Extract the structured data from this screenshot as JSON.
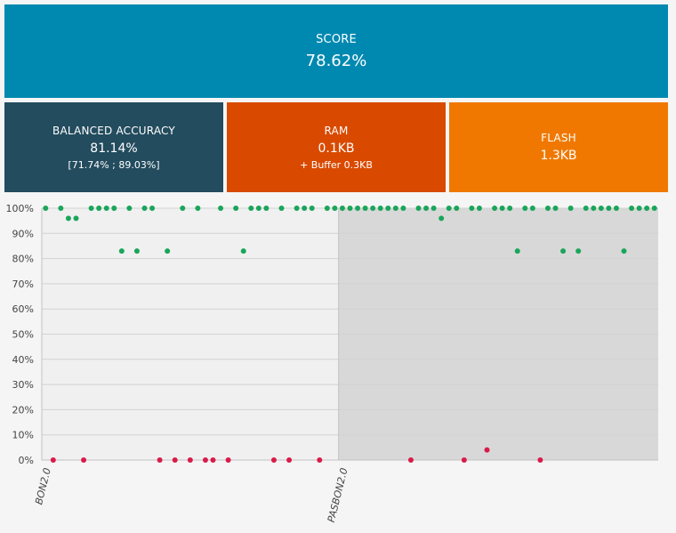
{
  "tiles": {
    "score": {
      "label": "SCORE",
      "value": "78.62%",
      "color": "#0089b0"
    },
    "balanced_accuracy": {
      "label": "BALANCED ACCURACY",
      "value": "81.14%",
      "interval": "[71.74% ; 89.03%]",
      "color": "#234c5e"
    },
    "ram": {
      "label": "RAM",
      "value": "0.1KB",
      "sub": "+ Buffer 0.3KB",
      "color": "#d94a00"
    },
    "flash": {
      "label": "FLASH",
      "value": "1.3KB",
      "color": "#f07800"
    }
  },
  "chart_data": {
    "type": "scatter",
    "title": "",
    "xlabel": "",
    "ylabel": "",
    "ylim": [
      0,
      100
    ],
    "grid": true,
    "y_ticks": [
      "0%",
      "10%",
      "20%",
      "30%",
      "40%",
      "50%",
      "60%",
      "70%",
      "80%",
      "90%",
      "100%"
    ],
    "categories": [
      "BON2.0",
      "PASBON2.0"
    ],
    "x_range": [
      0,
      81
    ],
    "category_starts": [
      0,
      39
    ],
    "colors": {
      "correct": "#1aa55a",
      "incorrect": "#d81b4a",
      "band_1": "#f0f0f0",
      "band_2": "#d8d8d8"
    },
    "series": [
      {
        "category": "BON2.0",
        "x": [
          0.5,
          1.5,
          2.5,
          3.5,
          4.5,
          5.5,
          6.5,
          7.5,
          8.5,
          9.5,
          10.5,
          11.5,
          12.5,
          13.5,
          14.5,
          15.5,
          16.5,
          17.5,
          18.5,
          19.5,
          20.5,
          21.5,
          22.5,
          23.5,
          24.5,
          25.5,
          26.5,
          27.5,
          28.5,
          29.5,
          30.5,
          31.5,
          32.5,
          33.5,
          34.5,
          35.5,
          36.5,
          37.5,
          38.5
        ],
        "y": [
          100,
          0,
          100,
          96,
          96,
          0,
          100,
          100,
          100,
          100,
          83,
          100,
          83,
          100,
          100,
          0,
          83,
          0,
          100,
          0,
          100,
          0,
          0,
          100,
          0,
          100,
          83,
          100,
          100,
          100,
          0,
          100,
          0,
          100,
          100,
          100,
          0,
          100,
          100
        ]
      },
      {
        "category": "PASBON2.0",
        "x": [
          39.5,
          40.5,
          41.5,
          42.5,
          43.5,
          44.5,
          45.5,
          46.5,
          47.5,
          48.5,
          49.5,
          50.5,
          51.5,
          52.5,
          53.5,
          54.5,
          55.5,
          56.5,
          57.5,
          58.5,
          59.5,
          60.5,
          61.5,
          62.5,
          63.5,
          64.5,
          65.5,
          66.5,
          67.5,
          68.5,
          69.5,
          70.5,
          71.5,
          72.5,
          73.5,
          74.5,
          75.5,
          76.5,
          77.5,
          78.5,
          79.5,
          80.5
        ],
        "y": [
          100,
          100,
          100,
          100,
          100,
          100,
          100,
          100,
          100,
          0,
          100,
          100,
          100,
          96,
          100,
          100,
          0,
          100,
          100,
          4,
          100,
          100,
          100,
          83,
          100,
          100,
          0,
          100,
          100,
          83,
          100,
          83,
          100,
          100,
          100,
          100,
          100,
          83,
          100,
          100,
          100,
          100
        ]
      }
    ]
  }
}
